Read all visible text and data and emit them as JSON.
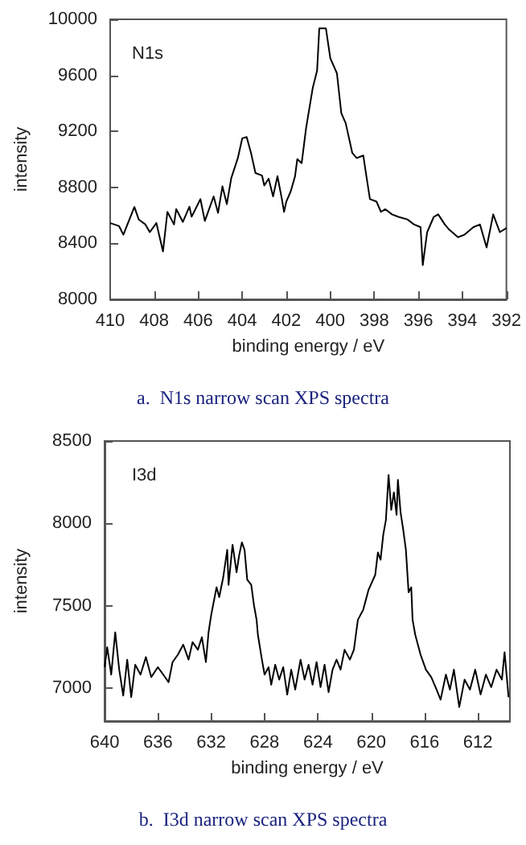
{
  "chart_data": [
    {
      "type": "line",
      "title": "a.  N1s narrow scan XPS spectra",
      "xlabel": "binding energy / eV",
      "ylabel": "intensity",
      "annotations": [
        "N1s"
      ],
      "xlim": [
        410,
        392
      ],
      "xticks": [
        410,
        408,
        406,
        404,
        402,
        400,
        398,
        396,
        394,
        392
      ],
      "ylim": [
        8000,
        10000
      ],
      "yticks": [
        8000,
        8400,
        8800,
        9200,
        9600,
        10000
      ],
      "grid": false,
      "marker": "none",
      "line_style": "solid",
      "series": [
        {
          "color": "#000000",
          "x": [
            410,
            409.6,
            409.4,
            408.9,
            408.7,
            408.4,
            408.2,
            407.9,
            407.6,
            407.4,
            407.1,
            407.0,
            406.7,
            406.4,
            406.3,
            405.9,
            405.7,
            405.3,
            405.1,
            404.9,
            404.7,
            404.5,
            404.2,
            404.0,
            403.8,
            403.6,
            403.4,
            403.1,
            403.0,
            402.8,
            402.6,
            402.4,
            402.2,
            402.1,
            402.0,
            401.8,
            401.6,
            401.5,
            401.3,
            401.1,
            400.8,
            400.6,
            400.5,
            400.2,
            400.0,
            399.7,
            399.5,
            399.3,
            399.0,
            398.8,
            398.5,
            398.4,
            398.2,
            397.9,
            397.7,
            397.5,
            397.2,
            396.9,
            396.5,
            396.2,
            395.9,
            395.8,
            395.6,
            395.3,
            395.1,
            394.8,
            394.6,
            394.2,
            393.9,
            393.5,
            393.2,
            392.9,
            392.6,
            392.3,
            392.0
          ],
          "values": [
            8545,
            8524,
            8462,
            8660,
            8570,
            8535,
            8480,
            8545,
            8342,
            8625,
            8535,
            8645,
            8553,
            8662,
            8590,
            8716,
            8560,
            8735,
            8618,
            8807,
            8680,
            8866,
            9009,
            9150,
            9159,
            9045,
            8902,
            8884,
            8813,
            8862,
            8735,
            8880,
            8716,
            8625,
            8698,
            8770,
            8880,
            9002,
            8973,
            9223,
            9508,
            9633,
            9936,
            9936,
            9722,
            9615,
            9330,
            9258,
            9045,
            9009,
            9027,
            8920,
            8716,
            8698,
            8625,
            8644,
            8607,
            8589,
            8571,
            8535,
            8516,
            8244,
            8480,
            8589,
            8607,
            8535,
            8498,
            8444,
            8462,
            8516,
            8535,
            8371,
            8607,
            8480,
            8509
          ]
        }
      ]
    },
    {
      "type": "line",
      "title": "b.  I3d narrow scan XPS spectra",
      "xlabel": "binding energy / eV",
      "ylabel": "intensity",
      "annotations": [
        "I3d"
      ],
      "xlim": [
        640,
        609.6
      ],
      "xticks": [
        640,
        636,
        632,
        628,
        624,
        620,
        616,
        612
      ],
      "ylim": [
        6800,
        8500
      ],
      "yticks": [
        7000,
        7500,
        8000,
        8500
      ],
      "grid": false,
      "marker": "none",
      "line_style": "solid",
      "series": [
        {
          "color": "#000000",
          "x": [
            640,
            639.8,
            639.5,
            639.2,
            638.9,
            638.6,
            638.3,
            638.0,
            637.7,
            637.3,
            636.9,
            636.5,
            636.0,
            635.6,
            635.2,
            634.9,
            634.5,
            634.1,
            633.7,
            633.4,
            633.0,
            632.7,
            632.4,
            632.2,
            632.0,
            631.6,
            631.4,
            631.1,
            630.8,
            630.7,
            630.4,
            630.1,
            629.9,
            629.7,
            629.5,
            629.3,
            629.0,
            628.8,
            628.6,
            628.5,
            628.2,
            628.0,
            627.7,
            627.5,
            627.2,
            626.9,
            626.6,
            626.3,
            626.0,
            625.7,
            625.3,
            625.0,
            624.7,
            624.4,
            624.1,
            623.8,
            623.5,
            623.2,
            622.9,
            622.6,
            622.3,
            622.0,
            621.6,
            621.3,
            621.1,
            621.0,
            620.6,
            620.2,
            619.7,
            619.5,
            619.3,
            619.1,
            618.9,
            618.7,
            618.5,
            618.3,
            618.1,
            618.0,
            617.8,
            617.6,
            617.4,
            617.2,
            617.0,
            616.9,
            616.7,
            616.3,
            615.9,
            615.5,
            615.1,
            614.8,
            614.4,
            614.1,
            613.8,
            613.4,
            613.0,
            612.6,
            612.2,
            611.8,
            611.4,
            611.0,
            610.6,
            610.2,
            610.0,
            609.7
          ],
          "values": [
            7127,
            7248,
            7082,
            7339,
            7112,
            6955,
            7173,
            6945,
            7142,
            7082,
            7188,
            7067,
            7127,
            7082,
            7036,
            7158,
            7203,
            7264,
            7173,
            7279,
            7233,
            7309,
            7158,
            7339,
            7445,
            7612,
            7552,
            7673,
            7839,
            7627,
            7870,
            7703,
            7809,
            7885,
            7839,
            7658,
            7627,
            7506,
            7415,
            7324,
            7173,
            7082,
            7127,
            7021,
            7142,
            7052,
            7127,
            6961,
            7112,
            6991,
            7173,
            7052,
            7142,
            7021,
            7158,
            7006,
            7142,
            6976,
            7112,
            7173,
            7112,
            7233,
            7173,
            7233,
            7355,
            7415,
            7476,
            7597,
            7688,
            7824,
            7779,
            7930,
            8021,
            8294,
            8082,
            8188,
            8052,
            8264,
            8067,
            7961,
            7839,
            7582,
            7612,
            7415,
            7324,
            7203,
            7112,
            7067,
            6991,
            6930,
            7082,
            6991,
            7112,
            6885,
            7052,
            6991,
            7112,
            6961,
            7082,
            7006,
            7112,
            7052,
            7218,
            6945
          ]
        }
      ]
    }
  ]
}
